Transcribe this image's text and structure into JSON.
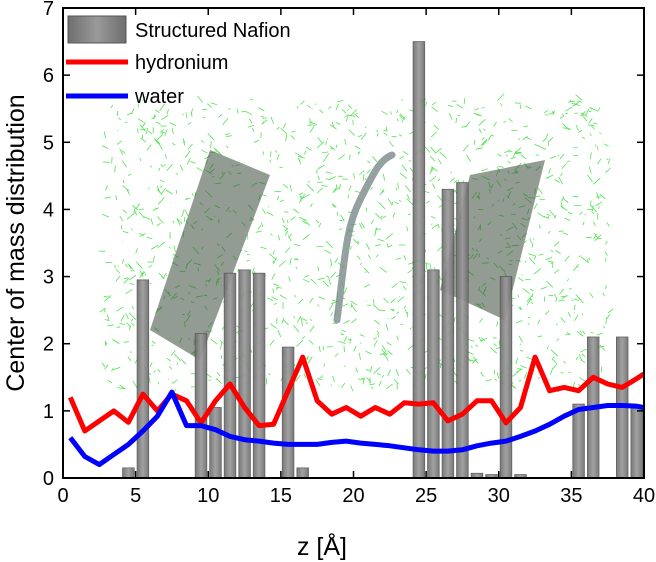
{
  "chart_data": {
    "type": "bar+line",
    "title": "",
    "xlabel": "z [Å]",
    "ylabel": "Center of mass distribution",
    "xlim": [
      0,
      40
    ],
    "ylim": [
      0,
      7
    ],
    "xticks": [
      0,
      5,
      10,
      15,
      20,
      25,
      30,
      35,
      40
    ],
    "yticks": [
      0,
      1,
      2,
      3,
      4,
      5,
      6,
      7
    ],
    "legend_position": "top-left",
    "series": [
      {
        "name": "Structured Nafion",
        "kind": "bar",
        "color": "#808080",
        "x": [
          4.5,
          5.5,
          9.5,
          10.5,
          11.5,
          12.5,
          13.5,
          15.5,
          16.5,
          24.5,
          25.5,
          26.5,
          27.5,
          28.5,
          29.5,
          30.5,
          31.5,
          35.5,
          36.5,
          38.5,
          39.5
        ],
        "values": [
          0.15,
          2.95,
          2.15,
          1.05,
          3.05,
          3.1,
          3.05,
          1.95,
          0.15,
          6.5,
          3.1,
          4.3,
          4.4,
          0.07,
          0.05,
          3.0,
          0.05,
          1.1,
          2.1,
          2.1,
          1.05
        ]
      },
      {
        "name": "hydronium",
        "kind": "line",
        "color": "#ff0000",
        "x": [
          0.5,
          1.5,
          2.5,
          3.5,
          4.5,
          5.5,
          6.5,
          7.5,
          8.5,
          9.5,
          10.5,
          11.5,
          12.5,
          13.5,
          14.5,
          15.5,
          16.5,
          17.5,
          18.5,
          19.5,
          20.5,
          21.5,
          22.5,
          23.5,
          24.5,
          25.5,
          26.5,
          27.5,
          28.5,
          29.5,
          30.5,
          31.5,
          32.5,
          33.5,
          34.5,
          35.5,
          36.5,
          37.5,
          38.5,
          39.5,
          40.0
        ],
        "values": [
          1.2,
          0.7,
          0.85,
          1.0,
          0.83,
          1.25,
          1.0,
          1.25,
          1.15,
          0.82,
          1.15,
          1.4,
          1.05,
          0.78,
          0.8,
          1.3,
          1.8,
          1.15,
          0.95,
          1.05,
          0.92,
          1.05,
          0.95,
          1.12,
          1.1,
          1.12,
          0.85,
          0.95,
          1.15,
          1.15,
          0.82,
          1.05,
          1.8,
          1.3,
          1.35,
          1.3,
          1.5,
          1.4,
          1.35,
          1.48,
          1.55
        ]
      },
      {
        "name": "water",
        "kind": "line",
        "color": "#0000ff",
        "x": [
          0.5,
          1.5,
          2.5,
          3.5,
          4.5,
          5.5,
          6.5,
          7.5,
          8.5,
          9.5,
          10.5,
          11.5,
          12.5,
          13.5,
          14.5,
          15.5,
          16.5,
          17.5,
          18.5,
          19.5,
          20.5,
          21.5,
          22.5,
          23.5,
          24.5,
          25.5,
          26.5,
          27.5,
          28.5,
          29.5,
          30.5,
          31.5,
          32.5,
          33.5,
          34.5,
          35.5,
          36.5,
          37.5,
          38.5,
          39.5,
          40.0
        ],
        "values": [
          0.6,
          0.32,
          0.2,
          0.35,
          0.5,
          0.7,
          0.92,
          1.28,
          0.78,
          0.78,
          0.72,
          0.62,
          0.57,
          0.55,
          0.52,
          0.5,
          0.5,
          0.5,
          0.53,
          0.55,
          0.52,
          0.5,
          0.48,
          0.45,
          0.42,
          0.4,
          0.4,
          0.42,
          0.48,
          0.52,
          0.55,
          0.62,
          0.7,
          0.8,
          0.92,
          1.02,
          1.05,
          1.08,
          1.08,
          1.07,
          1.05
        ]
      }
    ]
  }
}
